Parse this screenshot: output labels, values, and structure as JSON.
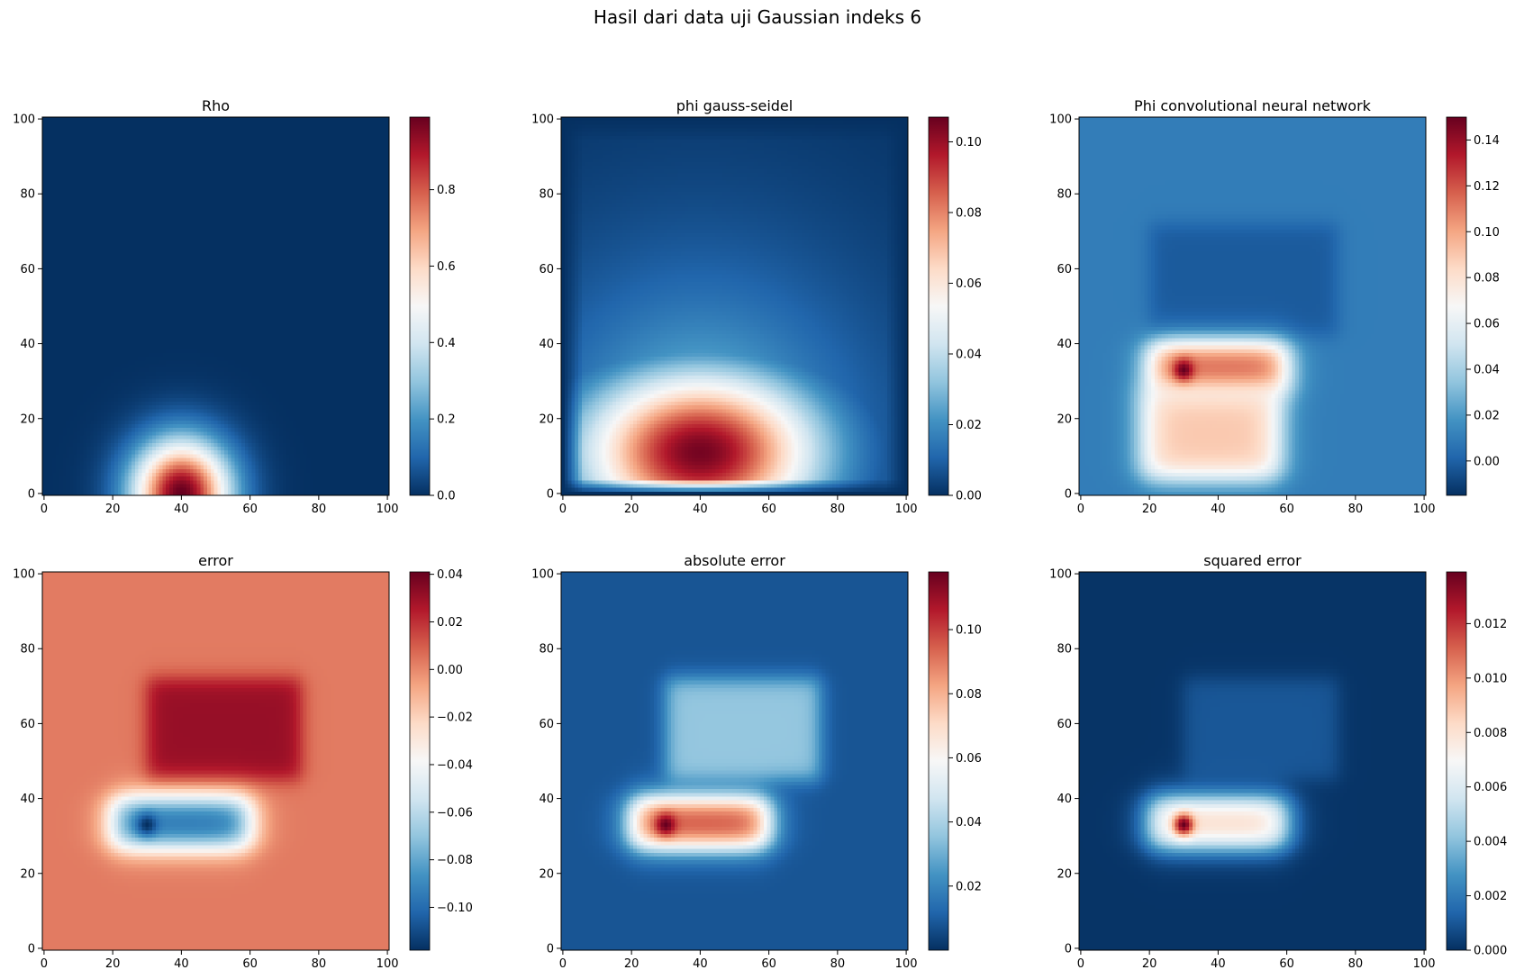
{
  "figure": {
    "suptitle": "Hasil dari data uji Gaussian indeks 6"
  },
  "colormap": {
    "name": "RdBu_r",
    "stops": [
      "#053061",
      "#2166ac",
      "#4393c3",
      "#92c5de",
      "#d1e5f0",
      "#f7f7f7",
      "#fddbc7",
      "#f4a582",
      "#d6604d",
      "#b2182b",
      "#67001f"
    ]
  },
  "chart_data": [
    {
      "type": "heatmap",
      "title": "Rho",
      "grid_size": 101,
      "xlim": [
        0,
        100
      ],
      "ylim": [
        0,
        100
      ],
      "xticks": [
        0,
        20,
        40,
        60,
        80,
        100
      ],
      "yticks": [
        0,
        20,
        40,
        60,
        80,
        100
      ],
      "clim": [
        0.0,
        0.99
      ],
      "colorbar_ticks": [
        "0.0",
        "0.2",
        "0.4",
        "0.6",
        "0.8"
      ],
      "colorbar_tick_values": [
        0.0,
        0.2,
        0.4,
        0.6,
        0.8
      ],
      "features": [
        {
          "kind": "gaussian",
          "cx": 40,
          "cy": 0,
          "sx": 10,
          "sy": 10,
          "amp": 0.99
        }
      ]
    },
    {
      "type": "heatmap",
      "title": "phi gauss-seidel",
      "grid_size": 101,
      "xlim": [
        0,
        100
      ],
      "ylim": [
        0,
        100
      ],
      "xticks": [
        0,
        20,
        40,
        60,
        80,
        100
      ],
      "yticks": [
        0,
        20,
        40,
        60,
        80,
        100
      ],
      "clim": [
        0.0,
        0.107
      ],
      "colorbar_ticks": [
        "0.00",
        "0.02",
        "0.04",
        "0.06",
        "0.08",
        "0.10"
      ],
      "colorbar_tick_values": [
        0.0,
        0.02,
        0.04,
        0.06,
        0.08,
        0.1
      ],
      "features": [
        {
          "kind": "potential",
          "cx": 40,
          "cy": 11,
          "peak": 0.105
        }
      ]
    },
    {
      "type": "heatmap",
      "title": "Phi convolutional neural network",
      "grid_size": 101,
      "xlim": [
        0,
        100
      ],
      "ylim": [
        0,
        100
      ],
      "xticks": [
        0,
        20,
        40,
        60,
        80,
        100
      ],
      "yticks": [
        0,
        20,
        40,
        60,
        80,
        100
      ],
      "clim": [
        -0.015,
        0.15
      ],
      "colorbar_ticks": [
        "0.00",
        "0.02",
        "0.04",
        "0.06",
        "0.08",
        "0.10",
        "0.12",
        "0.14"
      ],
      "colorbar_tick_values": [
        0.0,
        0.02,
        0.04,
        0.06,
        0.08,
        0.1,
        0.12,
        0.14
      ],
      "features": [
        {
          "kind": "base",
          "value": 0.01
        },
        {
          "kind": "box",
          "x0": 20,
          "x1": 75,
          "y0": 42,
          "y1": 72,
          "value": -0.012
        },
        {
          "kind": "blob",
          "x0": 20,
          "x1": 60,
          "y0": 27,
          "y1": 40,
          "value": 0.12
        },
        {
          "kind": "blob",
          "x0": 18,
          "x1": 58,
          "y0": 4,
          "y1": 28,
          "value": 0.09
        },
        {
          "kind": "hotspot",
          "cx": 30,
          "cy": 33,
          "value": 0.15
        }
      ]
    },
    {
      "type": "heatmap",
      "title": "error",
      "grid_size": 101,
      "xlim": [
        0,
        100
      ],
      "ylim": [
        0,
        100
      ],
      "xticks": [
        0,
        20,
        40,
        60,
        80,
        100
      ],
      "yticks": [
        0,
        20,
        40,
        60,
        80,
        100
      ],
      "clim": [
        -0.118,
        0.041
      ],
      "colorbar_ticks": [
        "0.04",
        "0.02",
        "0.00",
        "−0.02",
        "−0.04",
        "−0.06",
        "−0.08",
        "−0.10"
      ],
      "colorbar_tick_values": [
        0.04,
        0.02,
        0.0,
        -0.02,
        -0.04,
        -0.06,
        -0.08,
        -0.1
      ],
      "features": [
        {
          "kind": "base",
          "value": 0.003
        },
        {
          "kind": "box",
          "x0": 30,
          "x1": 75,
          "y0": 45,
          "y1": 72,
          "value": 0.028
        },
        {
          "kind": "blob",
          "x0": 20,
          "x1": 60,
          "y0": 27,
          "y1": 40,
          "value": -0.1
        },
        {
          "kind": "hotspot",
          "cx": 30,
          "cy": 33,
          "value": -0.118
        }
      ]
    },
    {
      "type": "heatmap",
      "title": "absolute error",
      "grid_size": 101,
      "xlim": [
        0,
        100
      ],
      "ylim": [
        0,
        100
      ],
      "xticks": [
        0,
        20,
        40,
        60,
        80,
        100
      ],
      "yticks": [
        0,
        20,
        40,
        60,
        80,
        100
      ],
      "clim": [
        0.0,
        0.118
      ],
      "colorbar_ticks": [
        "0.02",
        "0.04",
        "0.06",
        "0.08",
        "0.10"
      ],
      "colorbar_tick_values": [
        0.02,
        0.04,
        0.06,
        0.08,
        0.1
      ],
      "features": [
        {
          "kind": "base",
          "value": 0.008
        },
        {
          "kind": "box",
          "x0": 30,
          "x1": 75,
          "y0": 45,
          "y1": 72,
          "value": 0.028
        },
        {
          "kind": "blob",
          "x0": 20,
          "x1": 60,
          "y0": 27,
          "y1": 40,
          "value": 0.1
        },
        {
          "kind": "hotspot",
          "cx": 30,
          "cy": 33,
          "value": 0.118
        }
      ]
    },
    {
      "type": "heatmap",
      "title": "squared error",
      "grid_size": 101,
      "xlim": [
        0,
        100
      ],
      "ylim": [
        0,
        100
      ],
      "xticks": [
        0,
        20,
        40,
        60,
        80,
        100
      ],
      "yticks": [
        0,
        20,
        40,
        60,
        80,
        100
      ],
      "clim": [
        0.0,
        0.0139
      ],
      "colorbar_ticks": [
        "0.000",
        "0.002",
        "0.004",
        "0.006",
        "0.008",
        "0.010",
        "0.012"
      ],
      "colorbar_tick_values": [
        0.0,
        0.002,
        0.004,
        0.006,
        0.008,
        0.01,
        0.012
      ],
      "features": [
        {
          "kind": "base",
          "value": 0.0001
        },
        {
          "kind": "box",
          "x0": 30,
          "x1": 75,
          "y0": 45,
          "y1": 72,
          "value": 0.0009
        },
        {
          "kind": "blob",
          "x0": 20,
          "x1": 60,
          "y0": 27,
          "y1": 40,
          "value": 0.0085
        },
        {
          "kind": "hotspot",
          "cx": 30,
          "cy": 33,
          "value": 0.0139
        }
      ]
    }
  ]
}
